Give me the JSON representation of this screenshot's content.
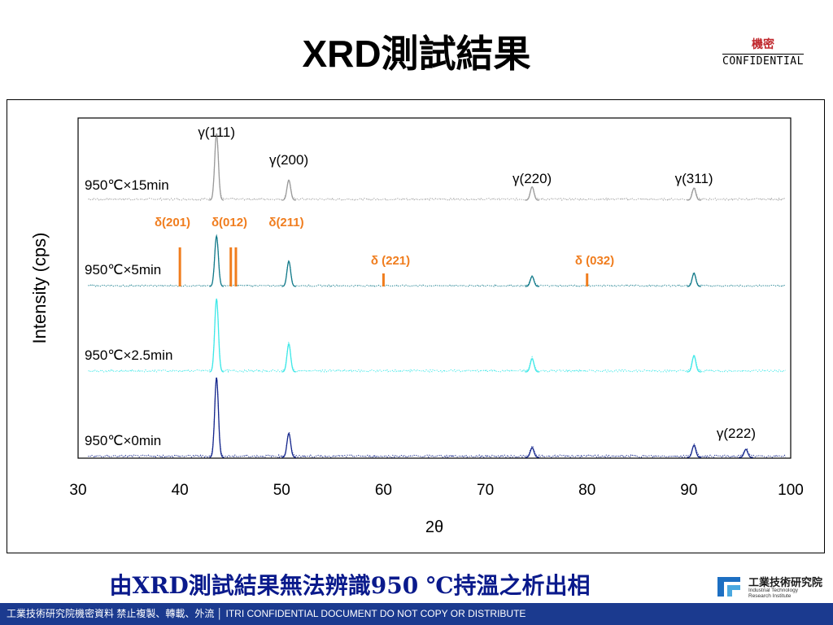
{
  "slide": {
    "title": "XRD測試結果",
    "confidential_top": "機密",
    "confidential_bottom": "CONFIDENTIAL",
    "caption": "由XRD測試結果無法辨識950 ℃持溫之析出相",
    "logo_name": "工業技術研究院",
    "logo_sub1": "Industrial Technology",
    "logo_sub2": "Research Institute",
    "footer": "工業技術研究院機密資料 禁止複製、轉載、外流 │ ITRI  CONFIDENTIAL  DOCUMENT  DO  NOT  COPY  OR  DISTRIBUTE"
  },
  "chart_data": {
    "type": "line",
    "xlabel": "2θ",
    "ylabel": "Intensity (cps)",
    "xlim": [
      30,
      100
    ],
    "xticks": [
      "30",
      "40",
      "50",
      "60",
      "70",
      "80",
      "90",
      "100"
    ],
    "colors": {
      "950℃×15min": "#9a9a9a",
      "950℃×5min": "#127a8a",
      "950℃×2.5min": "#3ee8e8",
      "950℃×0min": "#14268c",
      "delta": "#f07d1e"
    },
    "series": [
      {
        "name": "950℃×15min",
        "peaks": [
          [
            43.6,
            1.0
          ],
          [
            50.7,
            0.3
          ],
          [
            74.6,
            0.2
          ],
          [
            90.5,
            0.18
          ]
        ]
      },
      {
        "name": "950℃×5min",
        "peaks": [
          [
            43.6,
            1.0
          ],
          [
            50.7,
            0.5
          ],
          [
            74.6,
            0.2
          ],
          [
            90.5,
            0.26
          ]
        ]
      },
      {
        "name": "950℃×2.5min",
        "peaks": [
          [
            43.6,
            1.0
          ],
          [
            50.7,
            0.38
          ],
          [
            74.6,
            0.18
          ],
          [
            90.5,
            0.22
          ]
        ]
      },
      {
        "name": "950℃×0min",
        "peaks": [
          [
            43.6,
            1.0
          ],
          [
            50.7,
            0.3
          ],
          [
            74.6,
            0.12
          ],
          [
            90.5,
            0.15
          ],
          [
            95.6,
            0.1
          ]
        ]
      }
    ],
    "gamma_labels": [
      {
        "label": "γ(111)",
        "x": 43.6
      },
      {
        "label": "γ(200)",
        "x": 50.7
      },
      {
        "label": "γ(220)",
        "x": 74.6
      },
      {
        "label": "γ(311)",
        "x": 90.5
      },
      {
        "label": "γ(222)",
        "x": 95.6
      }
    ],
    "delta_labels": [
      {
        "label": "δ(201)",
        "x": 40.0
      },
      {
        "label": "δ(012)",
        "x": 45.0
      },
      {
        "label": "δ(211)",
        "x": 45.5
      },
      {
        "label": "δ (221)",
        "x": 60.0
      },
      {
        "label": "δ (032)",
        "x": 80.0
      }
    ]
  }
}
